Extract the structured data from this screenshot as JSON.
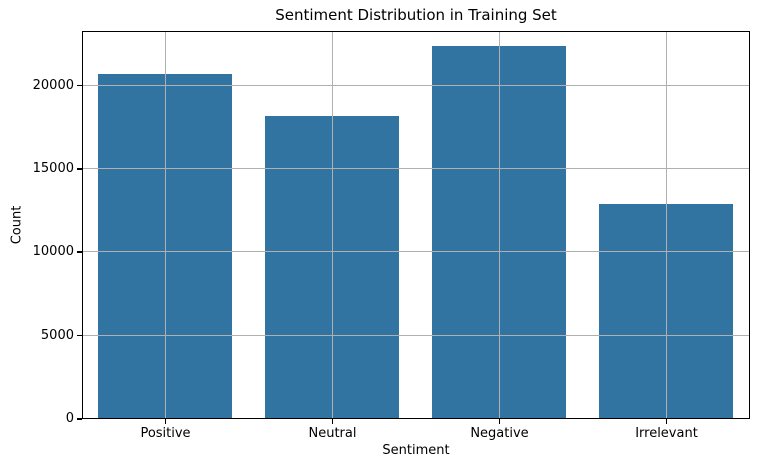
{
  "chart_data": {
    "type": "bar",
    "title": "Sentiment Distribution in Training Set",
    "xlabel": "Sentiment",
    "ylabel": "Count",
    "categories": [
      "Positive",
      "Neutral",
      "Negative",
      "Irrelevant"
    ],
    "values": [
      20655,
      18108,
      22358,
      12875
    ],
    "ylim": [
      0,
      23300
    ],
    "yticks": [
      0,
      5000,
      10000,
      15000,
      20000
    ],
    "ytick_labels": [
      "0",
      "5000",
      "10000",
      "15000",
      "20000"
    ],
    "grid": true,
    "grid_on_top_of_bars": true,
    "legend": "none",
    "bar_width_fraction": 0.8,
    "colors": {
      "bar": "#3274a1",
      "grid": "#b0b0b0",
      "spine": "#000000",
      "text": "#000000",
      "background": "#ffffff"
    }
  }
}
